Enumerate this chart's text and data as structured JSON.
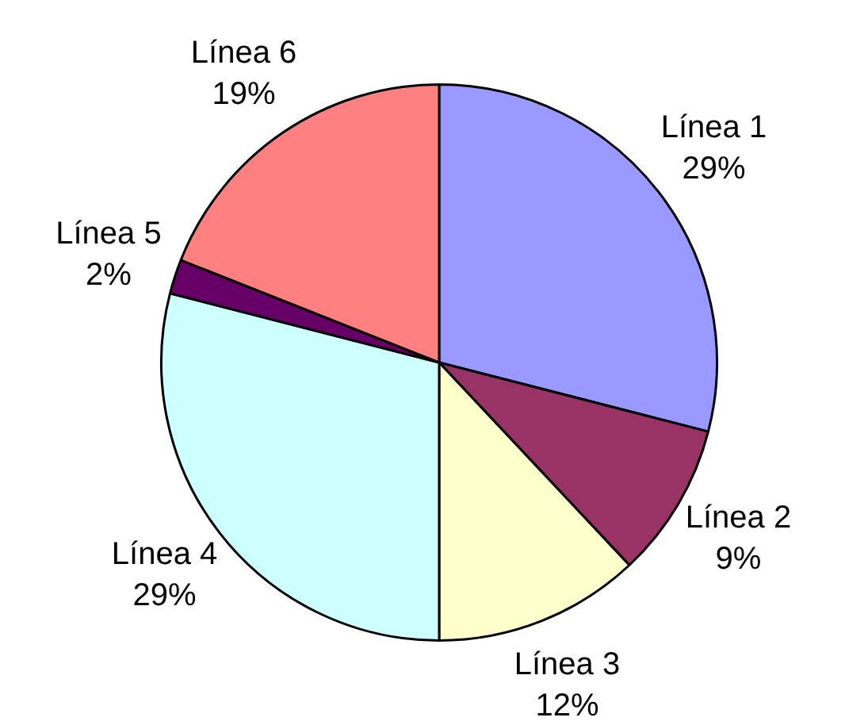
{
  "chart_data": {
    "type": "pie",
    "categories": [
      "Línea 1",
      "Línea 2",
      "Línea 3",
      "Línea 4",
      "Línea 5",
      "Línea 6"
    ],
    "values": [
      29,
      9,
      12,
      29,
      2,
      19
    ],
    "colors": [
      "#9999ff",
      "#993366",
      "#ffffcc",
      "#ccffff",
      "#660066",
      "#ff8080"
    ],
    "value_labels": [
      "29%",
      "9%",
      "12%",
      "29%",
      "2%",
      "19%"
    ],
    "legend": false
  }
}
